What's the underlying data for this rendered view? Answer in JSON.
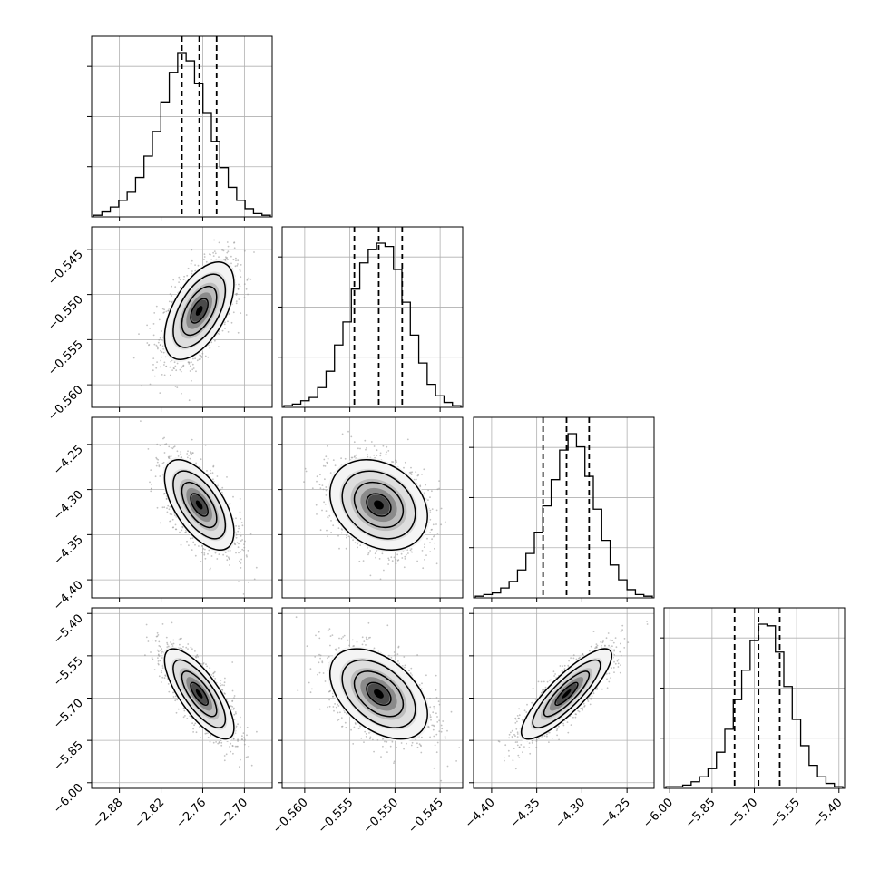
{
  "chart_data": {
    "type": "corner",
    "parameters": [
      {
        "index": 0,
        "range": [
          -2.92,
          -2.66
        ],
        "ticks": [
          -2.88,
          -2.82,
          -2.76,
          -2.7
        ],
        "tick_labels": [
          "−2.88",
          "−2.82",
          "−2.76",
          "−2.70"
        ],
        "quantiles": {
          "q16": -2.79,
          "q50": -2.765,
          "q84": -2.74
        },
        "mean": -2.765,
        "sd": 0.025,
        "histogram": [
          0.01,
          0.03,
          0.06,
          0.1,
          0.15,
          0.24,
          0.37,
          0.52,
          0.7,
          0.88,
          1.0,
          0.95,
          0.81,
          0.63,
          0.46,
          0.3,
          0.18,
          0.1,
          0.05,
          0.02,
          0.01
        ],
        "hist_ticks": 3
      },
      {
        "index": 1,
        "range": [
          -0.5625,
          -0.5425
        ],
        "ticks": [
          -0.56,
          -0.555,
          -0.55,
          -0.545
        ],
        "tick_labels": [
          "−0.560",
          "−0.555",
          "−0.550",
          "−0.545"
        ],
        "quantiles": {
          "q16": -0.5545,
          "q50": -0.5518,
          "q84": -0.5492
        },
        "mean": -0.5518,
        "sd": 0.0027,
        "histogram": [
          0.01,
          0.02,
          0.04,
          0.06,
          0.12,
          0.22,
          0.38,
          0.52,
          0.72,
          0.88,
          0.96,
          1.0,
          0.98,
          0.84,
          0.64,
          0.44,
          0.27,
          0.14,
          0.07,
          0.03,
          0.01
        ],
        "hist_ticks": 3
      },
      {
        "index": 2,
        "range": [
          -4.42,
          -4.22
        ],
        "ticks": [
          -4.4,
          -4.35,
          -4.3,
          -4.25
        ],
        "tick_labels": [
          "−4.40",
          "−4.35",
          "−4.30",
          "−4.25"
        ],
        "quantiles": {
          "q16": -4.343,
          "q50": -4.317,
          "q84": -4.292
        },
        "mean": -4.317,
        "sd": 0.025,
        "histogram": [
          0.01,
          0.02,
          0.03,
          0.06,
          0.1,
          0.17,
          0.27,
          0.4,
          0.56,
          0.72,
          0.9,
          1.0,
          0.92,
          0.74,
          0.54,
          0.35,
          0.2,
          0.11,
          0.05,
          0.02,
          0.01
        ],
        "hist_ticks": 3
      },
      {
        "index": 3,
        "range": [
          -6.02,
          -5.38
        ],
        "ticks": [
          -6.0,
          -5.85,
          -5.7,
          -5.55,
          -5.4
        ],
        "tick_labels": [
          "−6.00",
          "−5.85",
          "−5.70",
          "−5.55",
          "−5.40"
        ],
        "quantiles": {
          "q16": -5.77,
          "q50": -5.685,
          "q84": -5.61
        },
        "mean": -5.685,
        "sd": 0.08,
        "histogram": [
          0.01,
          0.01,
          0.02,
          0.04,
          0.07,
          0.12,
          0.22,
          0.36,
          0.54,
          0.72,
          0.9,
          1.0,
          0.99,
          0.83,
          0.62,
          0.42,
          0.26,
          0.14,
          0.07,
          0.03,
          0.01
        ],
        "hist_ticks": 3
      }
    ],
    "correlations": [
      {
        "row": 1,
        "col": 0,
        "r": 0.55
      },
      {
        "row": 2,
        "col": 0,
        "r": -0.6
      },
      {
        "row": 2,
        "col": 1,
        "r": -0.25
      },
      {
        "row": 3,
        "col": 0,
        "r": -0.75
      },
      {
        "row": 3,
        "col": 1,
        "r": -0.45
      },
      {
        "row": 3,
        "col": 2,
        "r": 0.85
      }
    ],
    "contour_levels_sigma": [
      0.5,
      1.0,
      1.5,
      2.0
    ],
    "grid": true,
    "colors": {
      "histogram_line": "#000000",
      "quantile_line": "#000000",
      "scatter_points": "#9a9a9a",
      "contour_line": "#000000",
      "density_fill_low": "#f2f2f2",
      "density_fill_high": "#000000",
      "grid_line": "#b0b0b0",
      "axes": "#000000"
    }
  }
}
